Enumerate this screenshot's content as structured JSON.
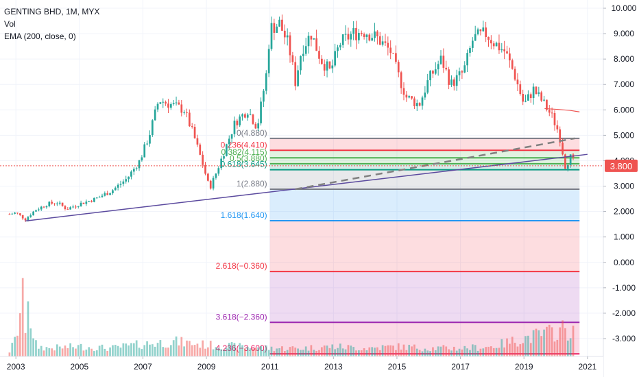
{
  "legend": {
    "symbol_line": "GENTING BHD, 1M, MYX",
    "vol_label": "Vol",
    "ema_label": "EMA (200, close, 0)"
  },
  "price_tag": "3.800",
  "colors": {
    "up": "#26a69a",
    "down": "#ef5350",
    "trendline": "#5b4a9e",
    "ema": "#ef5350",
    "price_line": "#ef5350",
    "grid": "#f0f3fa"
  },
  "chart_data": {
    "type": "candlestick",
    "title": "GENTING BHD, 1M, MYX",
    "x_axis": {
      "ticks": [
        "2003",
        "2005",
        "2007",
        "2009",
        "2011",
        "2013",
        "2015",
        "2017",
        "2019",
        "2021"
      ],
      "range": [
        "2002-06",
        "2021-06"
      ]
    },
    "y_axis": {
      "ticks": [
        "10.000",
        "9.000",
        "8.000",
        "7.000",
        "6.000",
        "5.000",
        "4.000",
        "3.000",
        "2.000",
        "1.000",
        "0.000",
        "-1.000",
        "-2.000",
        "-3.000"
      ],
      "range": [
        -3.6,
        10.2
      ]
    },
    "price_points": [
      [
        2002.8,
        1.9
      ],
      [
        2003.0,
        1.95
      ],
      [
        2003.3,
        1.7
      ],
      [
        2003.6,
        2.05
      ],
      [
        2004.0,
        2.3
      ],
      [
        2004.3,
        2.35
      ],
      [
        2004.6,
        2.1
      ],
      [
        2005.0,
        2.3
      ],
      [
        2005.5,
        2.5
      ],
      [
        2006.0,
        2.8
      ],
      [
        2006.5,
        3.3
      ],
      [
        2006.9,
        4.0
      ],
      [
        2007.2,
        5.0
      ],
      [
        2007.5,
        6.4
      ],
      [
        2007.9,
        6.2
      ],
      [
        2008.3,
        6.0
      ],
      [
        2008.6,
        5.0
      ],
      [
        2008.9,
        3.8
      ],
      [
        2009.1,
        2.9
      ],
      [
        2009.3,
        3.5
      ],
      [
        2009.6,
        4.5
      ],
      [
        2009.9,
        5.5
      ],
      [
        2010.3,
        6.0
      ],
      [
        2010.6,
        5.3
      ],
      [
        2010.9,
        7.5
      ],
      [
        2011.0,
        9.2
      ],
      [
        2011.3,
        9.4
      ],
      [
        2011.6,
        8.5
      ],
      [
        2011.8,
        7.1
      ],
      [
        2012.0,
        8.4
      ],
      [
        2012.3,
        9.0
      ],
      [
        2012.6,
        8.0
      ],
      [
        2012.9,
        7.5
      ],
      [
        2013.2,
        8.6
      ],
      [
        2013.6,
        9.0
      ],
      [
        2014.0,
        9.1
      ],
      [
        2014.4,
        8.8
      ],
      [
        2014.8,
        8.3
      ],
      [
        2015.0,
        7.5
      ],
      [
        2015.3,
        6.5
      ],
      [
        2015.7,
        6.2
      ],
      [
        2016.0,
        7.2
      ],
      [
        2016.4,
        8.0
      ],
      [
        2016.7,
        7.0
      ],
      [
        2017.1,
        7.5
      ],
      [
        2017.4,
        8.8
      ],
      [
        2017.8,
        9.0
      ],
      [
        2018.1,
        8.6
      ],
      [
        2018.4,
        8.3
      ],
      [
        2018.7,
        7.4
      ],
      [
        2019.0,
        6.2
      ],
      [
        2019.3,
        6.8
      ],
      [
        2019.6,
        6.3
      ],
      [
        2019.9,
        5.7
      ],
      [
        2020.1,
        5.1
      ],
      [
        2020.3,
        3.8
      ],
      [
        2020.5,
        4.2
      ],
      [
        2020.6,
        3.8
      ]
    ],
    "ema_200": [
      [
        2019.65,
        6.05
      ],
      [
        2020.05,
        6.02
      ],
      [
        2020.45,
        5.98
      ],
      [
        2020.75,
        5.92
      ]
    ],
    "last_price": 3.8,
    "trendline": [
      [
        2003.3,
        1.63
      ],
      [
        2021.0,
        4.25
      ]
    ],
    "dashed_trendline": [
      [
        2011.8,
        2.88
      ],
      [
        2020.6,
        4.88
      ]
    ],
    "fibonacci_extension": {
      "start_x": 2011.0,
      "end_x": 2020.75,
      "levels": [
        {
          "ratio": 0,
          "price": 4.88,
          "label": "0(4.880)",
          "color": "#787b86"
        },
        {
          "ratio": 0.236,
          "price": 4.41,
          "label": "0.236(4.410)",
          "color": "#f23645"
        },
        {
          "ratio": 0.382,
          "price": 4.115,
          "label": "0.382(4.115)",
          "color": "#4caf50"
        },
        {
          "ratio": 0.5,
          "price": 3.88,
          "label": "0.5(3.880)",
          "color": "#4caf50"
        },
        {
          "ratio": 0.618,
          "price": 3.645,
          "label": "0.618(3.645)",
          "color": "#089981"
        },
        {
          "ratio": 1,
          "price": 2.88,
          "label": "1(2.880)",
          "color": "#787b86"
        },
        {
          "ratio": 1.618,
          "price": 1.64,
          "label": "1.618(1.640)",
          "color": "#2196f3"
        },
        {
          "ratio": 2.618,
          "price": -0.36,
          "label": "2.618(−0.360)",
          "color": "#f23645"
        },
        {
          "ratio": 3.618,
          "price": -2.36,
          "label": "3.618(−2.360)",
          "color": "#9c27b0"
        },
        {
          "ratio": 4.236,
          "price": -3.6,
          "label": "4.236(−3.600)",
          "color": "#e91e63"
        }
      ]
    },
    "volume": [
      [
        2002.8,
        0.06
      ],
      [
        2003.0,
        0.22
      ],
      [
        2003.1,
        0.42
      ],
      [
        2003.2,
        0.75
      ],
      [
        2003.3,
        0.38
      ],
      [
        2003.4,
        0.9
      ],
      [
        2003.5,
        0.2
      ],
      [
        2003.7,
        0.12
      ],
      [
        2004.0,
        0.1
      ],
      [
        2005.0,
        0.12
      ],
      [
        2006.0,
        0.1
      ],
      [
        2007.0,
        0.15
      ],
      [
        2008.0,
        0.18
      ],
      [
        2009.0,
        0.14
      ],
      [
        2010.0,
        0.12
      ],
      [
        2011.0,
        0.1
      ],
      [
        2012.0,
        0.1
      ],
      [
        2013.0,
        0.12
      ],
      [
        2014.0,
        0.1
      ],
      [
        2015.0,
        0.12
      ],
      [
        2016.0,
        0.1
      ],
      [
        2017.0,
        0.1
      ],
      [
        2018.0,
        0.12
      ],
      [
        2019.0,
        0.22
      ],
      [
        2020.0,
        0.3
      ],
      [
        2020.3,
        0.34
      ],
      [
        2020.5,
        0.28
      ]
    ]
  }
}
